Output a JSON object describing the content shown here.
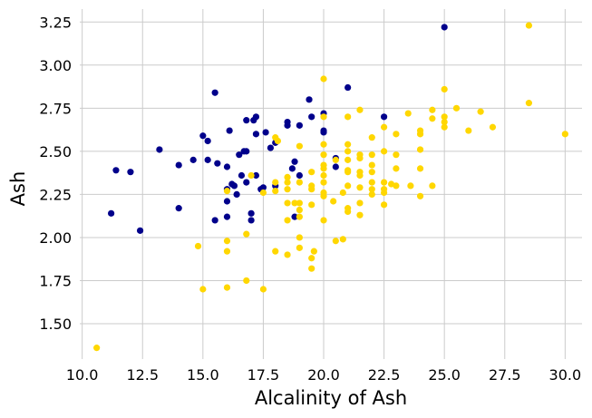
{
  "chart_data": {
    "type": "scatter",
    "title": "",
    "xlabel": "Alcalinity of Ash",
    "ylabel": "Ash",
    "xlim": [
      9.9,
      30.7
    ],
    "ylim": [
      1.295,
      3.325
    ],
    "xticks": [
      10.0,
      12.5,
      15.0,
      17.5,
      20.0,
      22.5,
      25.0,
      27.5,
      30.0
    ],
    "xtick_labels": [
      "10.0",
      "12.5",
      "15.0",
      "17.5",
      "20.0",
      "22.5",
      "25.0",
      "27.5",
      "30.0"
    ],
    "yticks": [
      1.5,
      1.75,
      2.0,
      2.25,
      2.5,
      2.75,
      3.0,
      3.25
    ],
    "ytick_labels": [
      "1.50",
      "1.75",
      "2.00",
      "2.25",
      "2.50",
      "2.75",
      "3.00",
      "3.25"
    ],
    "grid": true,
    "legend": "none",
    "background": "#ffffff",
    "grid_color": "#cbcbcb",
    "series": [
      {
        "color": "#00008b",
        "points": [
          [
            11.2,
            2.14
          ],
          [
            11.4,
            2.39
          ],
          [
            12.0,
            2.38
          ],
          [
            12.4,
            2.04
          ],
          [
            13.2,
            2.51
          ],
          [
            14.0,
            2.42
          ],
          [
            14.0,
            2.17
          ],
          [
            14.6,
            2.45
          ],
          [
            15.0,
            2.59
          ],
          [
            15.2,
            2.56
          ],
          [
            15.2,
            2.45
          ],
          [
            15.5,
            2.84
          ],
          [
            15.5,
            2.1
          ],
          [
            15.6,
            2.43
          ],
          [
            16.0,
            2.41
          ],
          [
            16.0,
            2.28
          ],
          [
            16.0,
            2.21
          ],
          [
            16.0,
            2.12
          ],
          [
            16.1,
            2.62
          ],
          [
            16.2,
            2.31
          ],
          [
            16.3,
            2.3
          ],
          [
            16.4,
            2.25
          ],
          [
            16.5,
            2.48
          ],
          [
            16.6,
            2.36
          ],
          [
            16.7,
            2.5
          ],
          [
            16.8,
            2.68
          ],
          [
            16.8,
            2.5
          ],
          [
            16.8,
            2.32
          ],
          [
            17.0,
            2.14
          ],
          [
            17.0,
            2.1
          ],
          [
            17.1,
            2.68
          ],
          [
            17.2,
            2.7
          ],
          [
            17.2,
            2.6
          ],
          [
            17.2,
            2.36
          ],
          [
            17.4,
            2.28
          ],
          [
            17.5,
            2.29
          ],
          [
            17.6,
            2.61
          ],
          [
            17.8,
            2.52
          ],
          [
            18.0,
            2.55
          ],
          [
            18.0,
            2.3
          ],
          [
            18.5,
            2.67
          ],
          [
            18.5,
            2.65
          ],
          [
            18.7,
            2.4
          ],
          [
            18.8,
            2.44
          ],
          [
            18.8,
            2.12
          ],
          [
            19.0,
            2.65
          ],
          [
            19.0,
            2.36
          ],
          [
            19.4,
            2.8
          ],
          [
            19.5,
            2.7
          ],
          [
            20.0,
            2.72
          ],
          [
            20.0,
            2.62
          ],
          [
            20.0,
            2.61
          ],
          [
            20.5,
            2.41
          ],
          [
            20.5,
            2.46
          ],
          [
            21.0,
            2.87
          ],
          [
            22.5,
            2.7
          ],
          [
            25.0,
            3.22
          ]
        ]
      },
      {
        "color": "#ffd700",
        "points": [
          [
            10.6,
            1.36
          ],
          [
            14.8,
            1.95
          ],
          [
            15.0,
            1.7
          ],
          [
            16.0,
            1.98
          ],
          [
            16.0,
            1.92
          ],
          [
            16.0,
            1.71
          ],
          [
            16.0,
            2.27
          ],
          [
            16.8,
            2.02
          ],
          [
            16.8,
            1.75
          ],
          [
            17.0,
            2.36
          ],
          [
            17.5,
            1.7
          ],
          [
            17.5,
            2.26
          ],
          [
            18.0,
            2.58
          ],
          [
            18.0,
            2.32
          ],
          [
            18.0,
            2.27
          ],
          [
            18.0,
            1.92
          ],
          [
            18.1,
            2.56
          ],
          [
            18.5,
            2.35
          ],
          [
            18.5,
            2.32
          ],
          [
            18.5,
            2.28
          ],
          [
            18.5,
            2.2
          ],
          [
            18.5,
            2.1
          ],
          [
            18.5,
            1.9
          ],
          [
            18.8,
            2.2
          ],
          [
            19.0,
            2.53
          ],
          [
            19.0,
            2.32
          ],
          [
            19.0,
            2.2
          ],
          [
            19.0,
            2.16
          ],
          [
            19.0,
            2.12
          ],
          [
            19.0,
            2.0
          ],
          [
            19.0,
            1.94
          ],
          [
            19.5,
            2.38
          ],
          [
            19.5,
            2.3
          ],
          [
            19.5,
            2.28
          ],
          [
            19.5,
            2.19
          ],
          [
            19.5,
            1.88
          ],
          [
            19.5,
            1.82
          ],
          [
            19.6,
            1.92
          ],
          [
            20.0,
            2.92
          ],
          [
            20.0,
            2.7
          ],
          [
            20.0,
            2.54
          ],
          [
            20.0,
            2.48
          ],
          [
            20.0,
            2.42
          ],
          [
            20.0,
            2.4
          ],
          [
            20.0,
            2.36
          ],
          [
            20.0,
            2.32
          ],
          [
            20.0,
            2.26
          ],
          [
            20.0,
            2.24
          ],
          [
            20.0,
            2.1
          ],
          [
            20.4,
            2.21
          ],
          [
            20.5,
            2.45
          ],
          [
            20.5,
            1.98
          ],
          [
            20.8,
            2.26
          ],
          [
            20.8,
            1.99
          ],
          [
            21.0,
            2.7
          ],
          [
            21.0,
            2.54
          ],
          [
            21.0,
            2.5
          ],
          [
            21.0,
            2.45
          ],
          [
            21.0,
            2.39
          ],
          [
            21.0,
            2.38
          ],
          [
            21.0,
            2.3
          ],
          [
            21.0,
            2.17
          ],
          [
            21.0,
            2.15
          ],
          [
            21.5,
            2.74
          ],
          [
            21.5,
            2.48
          ],
          [
            21.5,
            2.46
          ],
          [
            21.5,
            2.38
          ],
          [
            21.5,
            2.36
          ],
          [
            21.5,
            2.29
          ],
          [
            21.5,
            2.2
          ],
          [
            21.5,
            2.13
          ],
          [
            22.0,
            2.58
          ],
          [
            22.0,
            2.48
          ],
          [
            22.0,
            2.42
          ],
          [
            22.0,
            2.38
          ],
          [
            22.0,
            2.32
          ],
          [
            22.0,
            2.28
          ],
          [
            22.0,
            2.25
          ],
          [
            22.5,
            2.64
          ],
          [
            22.5,
            2.5
          ],
          [
            22.5,
            2.32
          ],
          [
            22.5,
            2.28
          ],
          [
            22.5,
            2.26
          ],
          [
            22.5,
            2.19
          ],
          [
            22.8,
            2.31
          ],
          [
            23.0,
            2.6
          ],
          [
            23.0,
            2.48
          ],
          [
            23.0,
            2.4
          ],
          [
            23.0,
            2.3
          ],
          [
            23.5,
            2.72
          ],
          [
            23.6,
            2.3
          ],
          [
            24.0,
            2.62
          ],
          [
            24.0,
            2.6
          ],
          [
            24.0,
            2.51
          ],
          [
            24.0,
            2.4
          ],
          [
            24.0,
            2.24
          ],
          [
            24.5,
            2.74
          ],
          [
            24.5,
            2.69
          ],
          [
            24.5,
            2.3
          ],
          [
            25.0,
            2.86
          ],
          [
            25.0,
            2.7
          ],
          [
            25.0,
            2.67
          ],
          [
            25.0,
            2.64
          ],
          [
            25.5,
            2.75
          ],
          [
            26.0,
            2.62
          ],
          [
            26.5,
            2.73
          ],
          [
            27.0,
            2.64
          ],
          [
            28.5,
            3.23
          ],
          [
            28.5,
            2.78
          ],
          [
            30.0,
            2.6
          ]
        ]
      }
    ]
  }
}
